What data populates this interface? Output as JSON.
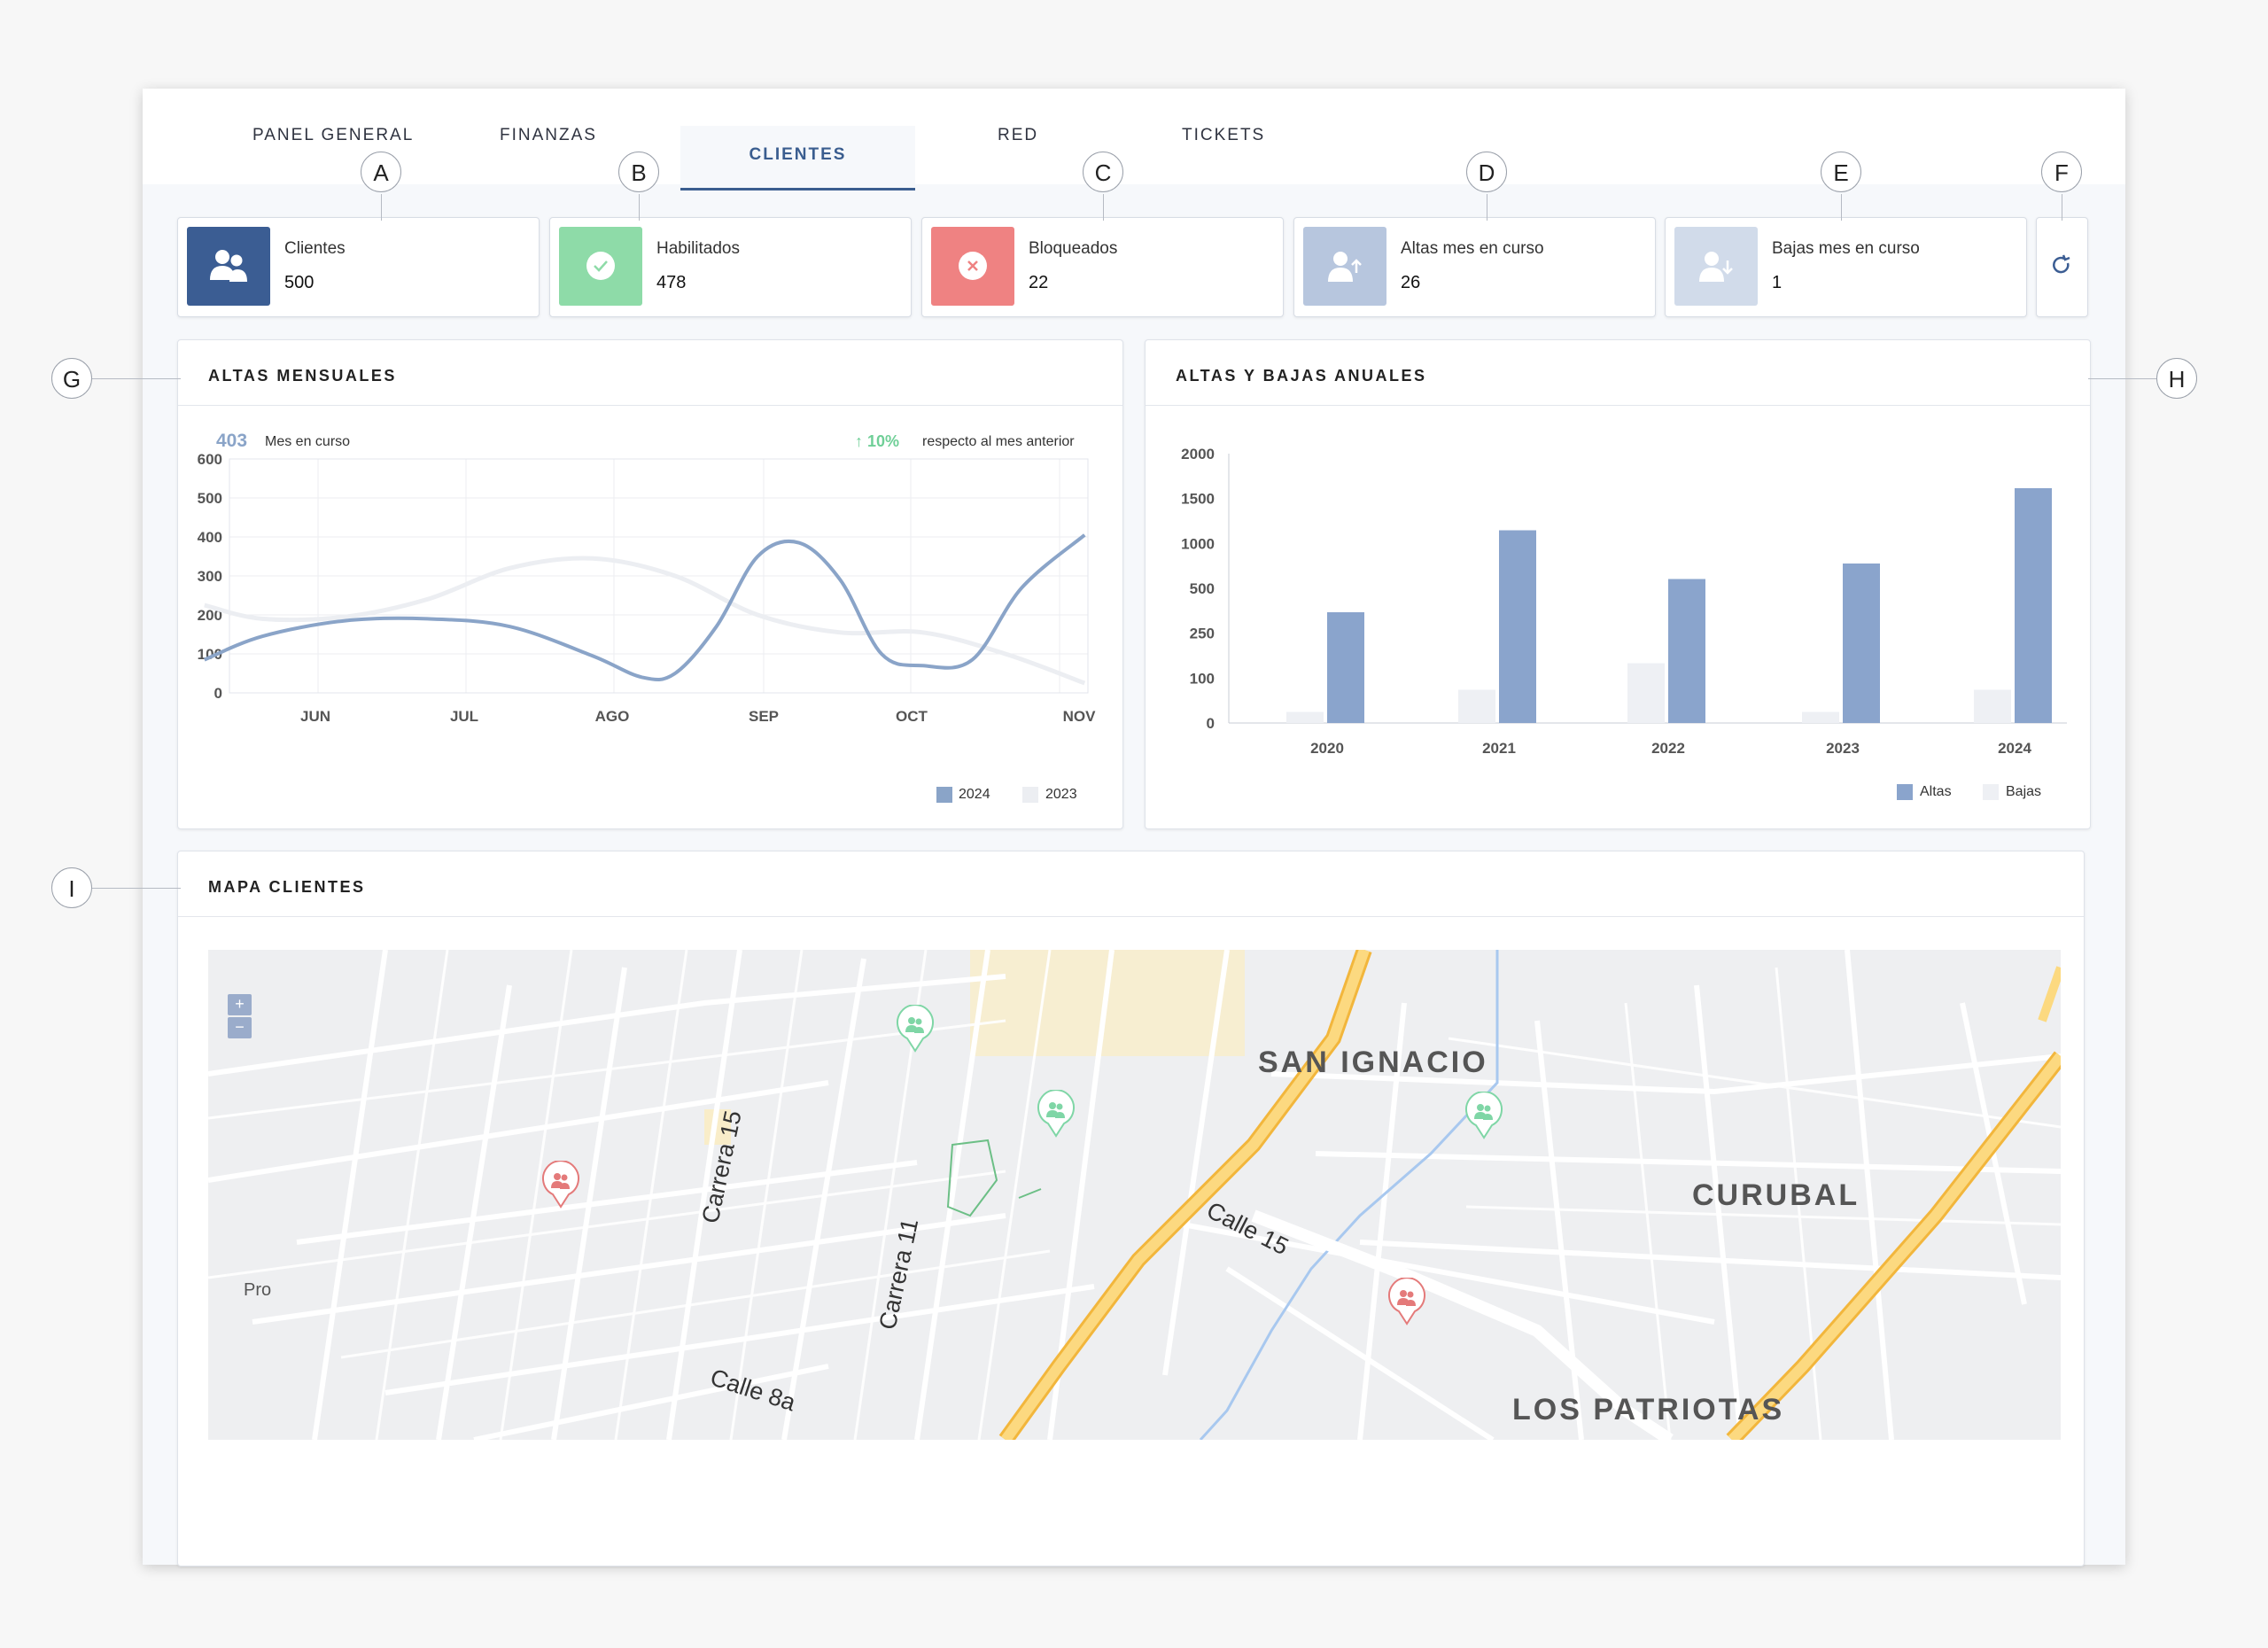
{
  "tabs": [
    {
      "label": "PANEL GENERAL"
    },
    {
      "label": "FINANZAS"
    },
    {
      "label": "CLIENTES",
      "active": true
    },
    {
      "label": "RED"
    },
    {
      "label": "TICKETS"
    }
  ],
  "callouts": [
    "A",
    "B",
    "C",
    "D",
    "E",
    "F",
    "G",
    "H",
    "I"
  ],
  "kpis": [
    {
      "label": "Clientes",
      "value": "500",
      "icon": "users-icon",
      "color": "#3b5d93"
    },
    {
      "label": "Habilitados",
      "value": "478",
      "icon": "check-circle-icon",
      "color": "#8edba8"
    },
    {
      "label": "Bloqueados",
      "value": "22",
      "icon": "x-circle-icon",
      "color": "#ef8282"
    },
    {
      "label": "Altas mes en curso",
      "value": "26",
      "icon": "user-up-icon",
      "color": "#b7c6de"
    },
    {
      "label": "Bajas mes en curso",
      "value": "1",
      "icon": "user-down-icon",
      "color": "#d1dbea"
    }
  ],
  "refresh": {
    "icon": "refresh-icon"
  },
  "monthly": {
    "title": "ALTAS MENSUALES",
    "current_value": "403",
    "current_label": "Mes en curso",
    "change": "10%",
    "change_icon": "arrow-up-icon",
    "change_label": "respecto al mes anterior",
    "chart_data": {
      "type": "line",
      "categories": [
        "JUN",
        "JUL",
        "AGO",
        "SEP",
        "OCT",
        "NOV"
      ],
      "yticks": [
        "600",
        "500",
        "400",
        "300",
        "200",
        "100",
        "0"
      ],
      "ylim": [
        0,
        600
      ],
      "grid": true,
      "legend_position": "bottom-right",
      "series": [
        {
          "name": "2024",
          "color": "#8aa4c8",
          "points": [
            [
              -0.35,
              85
            ],
            [
              0,
              145
            ],
            [
              0.5,
              185
            ],
            [
              1,
              190
            ],
            [
              1.5,
              170
            ],
            [
              2,
              95
            ],
            [
              2.3,
              40
            ],
            [
              2.5,
              50
            ],
            [
              2.75,
              170
            ],
            [
              3,
              350
            ],
            [
              3.25,
              385
            ],
            [
              3.5,
              290
            ],
            [
              3.75,
              100
            ],
            [
              4.0,
              70
            ],
            [
              4.3,
              85
            ],
            [
              4.6,
              270
            ],
            [
              4.98,
              405
            ]
          ]
        },
        {
          "name": "2023",
          "color": "#eceef2",
          "points": [
            [
              -0.35,
              225
            ],
            [
              0,
              190
            ],
            [
              0.5,
              195
            ],
            [
              1,
              240
            ],
            [
              1.5,
              320
            ],
            [
              2,
              345
            ],
            [
              2.5,
              300
            ],
            [
              3,
              200
            ],
            [
              3.5,
              155
            ],
            [
              4,
              155
            ],
            [
              4.5,
              100
            ],
            [
              4.98,
              25
            ]
          ]
        }
      ]
    }
  },
  "annual": {
    "title": "ALTAS Y BAJAS ANUALES",
    "chart_data": {
      "type": "bar",
      "categories": [
        "2020",
        "2021",
        "2022",
        "2023",
        "2024"
      ],
      "yticks": [
        "2000",
        "1500",
        "1000",
        "500",
        "250",
        "100",
        "0"
      ],
      "legend_position": "bottom-right",
      "series": [
        {
          "name": "Altas",
          "color": "#8aa4cc",
          "values": [
            5,
            8.7,
            6.5,
            7.2,
            10.6
          ]
        },
        {
          "name": "Bajas",
          "color": "#eef0f4",
          "values": [
            0.5,
            1.5,
            2.7,
            0.5,
            1.5
          ]
        }
      ]
    }
  },
  "map_panel": {
    "title": "MAPA CLIENTES",
    "zoom_in": "+",
    "zoom_out": "−",
    "labels": [
      "SAN IGNACIO",
      "CURUBAL",
      "LOS PATRIOTAS",
      "Carrera 15",
      "Carrera 11",
      "Calle 15",
      "Calle 8a",
      "Pro"
    ],
    "markers": [
      {
        "type": "enabled",
        "color": "#7fd6a6",
        "icon": "users-icon"
      },
      {
        "type": "enabled",
        "color": "#7fd6a6",
        "icon": "users-icon"
      },
      {
        "type": "enabled",
        "color": "#7fd6a6",
        "icon": "users-icon"
      },
      {
        "type": "blocked",
        "color": "#e47a7a",
        "icon": "users-icon"
      },
      {
        "type": "blocked",
        "color": "#e47a7a",
        "icon": "users-icon"
      }
    ]
  }
}
